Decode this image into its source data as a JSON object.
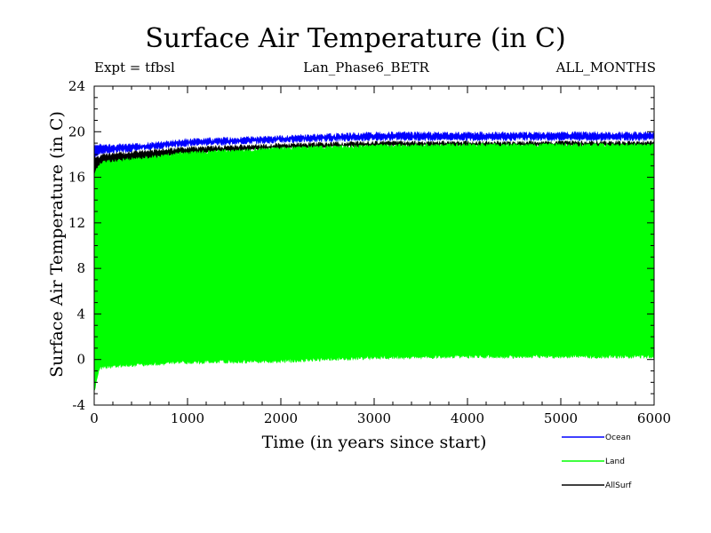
{
  "header": {
    "title": "Surface Air Temperature (in C)",
    "expt": "Expt = tfbsl",
    "experiment_name": "Lan_Phase6_BETR",
    "months": "ALL_MONTHS"
  },
  "chart_data": {
    "type": "area",
    "title": "Surface Air Temperature (in C)",
    "xlabel": "Time (in years since start)",
    "ylabel": "Surface Air Temperature (in C)",
    "xlim": [
      0,
      6000
    ],
    "ylim": [
      -4,
      24
    ],
    "x_ticks": [
      0,
      1000,
      2000,
      3000,
      4000,
      5000,
      6000
    ],
    "y_ticks": [
      -4,
      0,
      4,
      8,
      12,
      16,
      20,
      24
    ],
    "grid": false,
    "legend_position": "bottom-right",
    "series": [
      {
        "name": "Ocean",
        "color": "#0000ff",
        "style": "band",
        "x": [
          0,
          50,
          100,
          500,
          1000,
          2000,
          3000,
          4000,
          5000,
          6000
        ],
        "lower": [
          17.5,
          18.0,
          18.0,
          18.3,
          18.7,
          19.0,
          19.2,
          19.2,
          19.2,
          19.2
        ],
        "upper": [
          18.8,
          19.0,
          18.9,
          19.0,
          19.4,
          19.7,
          20.0,
          20.0,
          20.0,
          20.0
        ]
      },
      {
        "name": "AllSurf",
        "color": "#000000",
        "style": "band",
        "x": [
          0,
          50,
          100,
          500,
          1000,
          2000,
          3000,
          4000,
          5000,
          6000
        ],
        "lower": [
          15.5,
          16.8,
          17.0,
          17.4,
          17.9,
          18.4,
          18.6,
          18.6,
          18.6,
          18.6
        ],
        "upper": [
          17.8,
          18.0,
          18.1,
          18.4,
          18.7,
          19.0,
          19.2,
          19.2,
          19.2,
          19.2
        ]
      },
      {
        "name": "Land",
        "color": "#00ff00",
        "style": "band",
        "x": [
          0,
          50,
          100,
          500,
          1000,
          2000,
          3000,
          4000,
          5000,
          6000
        ],
        "lower": [
          -3.0,
          -1.0,
          -0.8,
          -0.6,
          -0.4,
          -0.3,
          0.0,
          0.1,
          0.1,
          0.1
        ],
        "upper": [
          16.5,
          17.2,
          17.5,
          17.8,
          18.3,
          18.7,
          18.9,
          19.0,
          19.0,
          19.0
        ]
      }
    ],
    "legend": [
      {
        "name": "Ocean",
        "color": "#0000ff"
      },
      {
        "name": "Land",
        "color": "#00ff00"
      },
      {
        "name": "AllSurf",
        "color": "#000000"
      }
    ]
  }
}
